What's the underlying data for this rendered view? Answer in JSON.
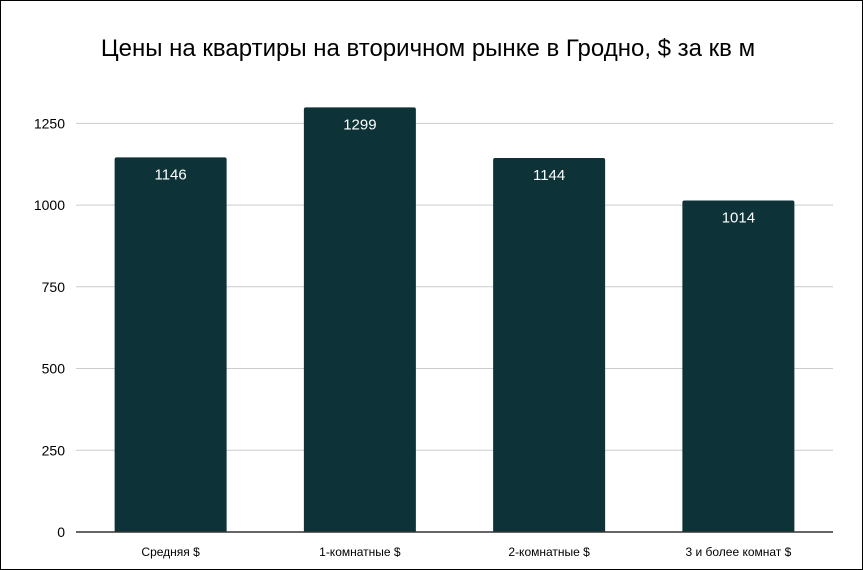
{
  "chart_data": {
    "type": "bar",
    "title": "Цены на квартиры на вторичном рынке в Гродно, $ за кв м",
    "xlabel": "",
    "ylabel": "",
    "categories": [
      "Средняя $",
      "1-комнатные $",
      "2-комнатные $",
      "3 и более комнат $"
    ],
    "values": [
      1146,
      1299,
      1144,
      1014
    ],
    "value_labels": [
      "1146",
      "1299",
      "1144",
      "1014"
    ],
    "ylim": [
      0,
      1300
    ],
    "yticks": [
      0,
      250,
      500,
      750,
      1000,
      1250
    ],
    "ytick_labels": [
      "0",
      "250",
      "500",
      "750",
      "1000",
      "1250"
    ],
    "grid": true,
    "legend": "none",
    "bar_color": "#0d3339",
    "value_label_color": "#ffffff",
    "grid_color": "#cccccc",
    "axis_color": "#333333"
  }
}
